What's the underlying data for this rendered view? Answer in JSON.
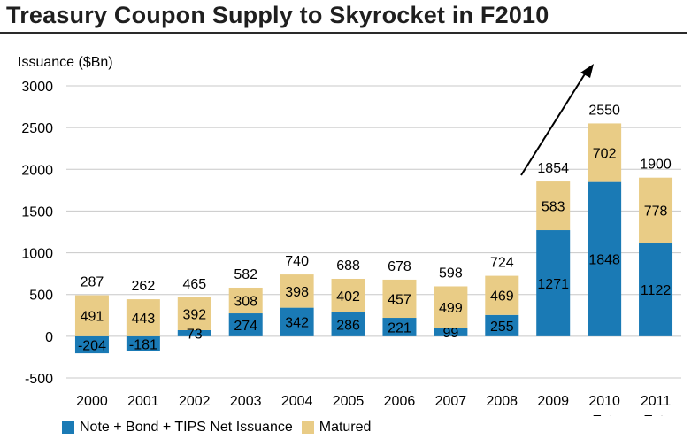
{
  "title": "Treasury Coupon Supply to Skyrocket in F2010",
  "colors": {
    "net": "#1a7ab5",
    "matured": "#e9cc86",
    "grid": "#c8c8c8"
  },
  "chart_data": {
    "type": "bar",
    "stacked": true,
    "ylabel": "Issuance ($Bn)",
    "ylim": [
      -500,
      3000
    ],
    "yticks": [
      -500,
      0,
      500,
      1000,
      1500,
      2000,
      2500,
      3000
    ],
    "grid": true,
    "legend_position": "bottom",
    "categories": [
      [
        "2000"
      ],
      [
        "2001"
      ],
      [
        "2002"
      ],
      [
        "2003"
      ],
      [
        "2004"
      ],
      [
        "2005"
      ],
      [
        "2006"
      ],
      [
        "2007"
      ],
      [
        "2008"
      ],
      [
        "2009"
      ],
      [
        "2010",
        "Est."
      ],
      [
        "2011",
        "Est."
      ]
    ],
    "series": [
      {
        "name": "Note + Bond + TIPS Net Issuance",
        "values": [
          -204,
          -181,
          73,
          274,
          342,
          286,
          221,
          99,
          255,
          1271,
          1848,
          1122
        ]
      },
      {
        "name": "Matured",
        "values": [
          491,
          443,
          392,
          308,
          398,
          402,
          457,
          499,
          469,
          583,
          702,
          778
        ]
      }
    ],
    "totals": [
      287,
      262,
      465,
      582,
      740,
      688,
      678,
      598,
      724,
      1854,
      2550,
      1900
    ]
  }
}
